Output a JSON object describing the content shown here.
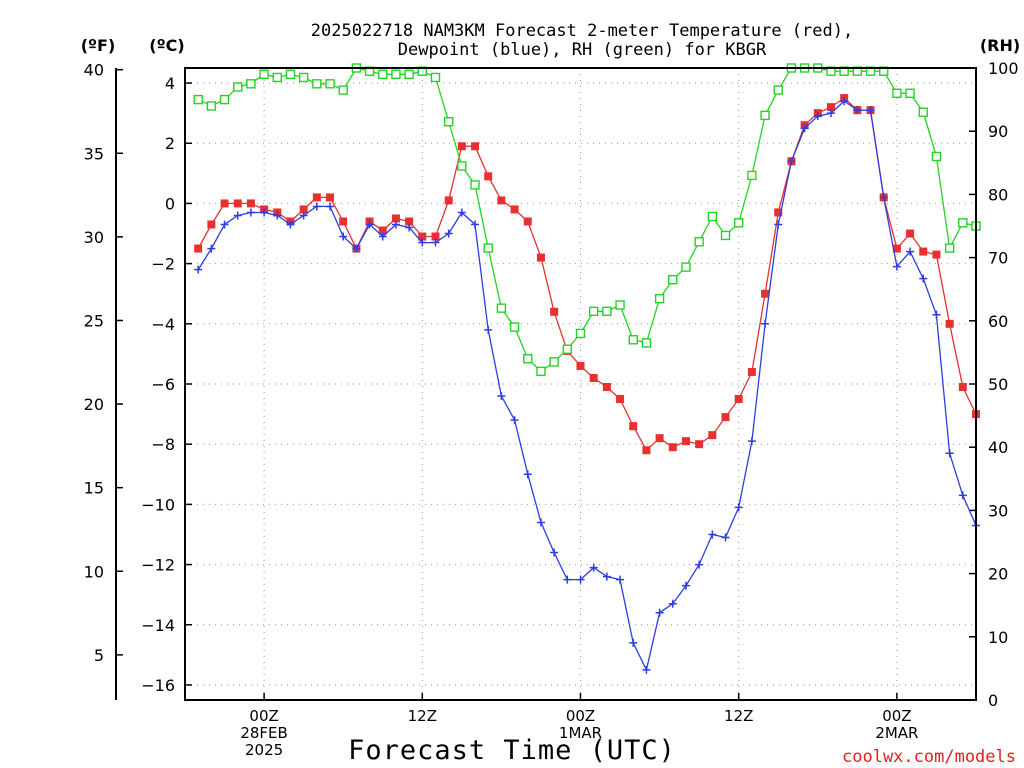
{
  "chart_data": {
    "type": "line",
    "title": "2025022718 NAM3KM Forecast 2-meter Temperature (red),",
    "subtitle": "Dewpoint (blue), RH (green) for KBGR",
    "xlabel": "Forecast Time (UTC)",
    "credit": "coolwx.com/models",
    "units": {
      "fahrenheit": "(ºF)",
      "celsius": "(ºC)",
      "rh": "(RH)"
    },
    "x": [
      19,
      20,
      21,
      22,
      23,
      24,
      25,
      26,
      27,
      28,
      29,
      30,
      31,
      32,
      33,
      34,
      35,
      36,
      37,
      38,
      39,
      40,
      41,
      42,
      43,
      44,
      45,
      46,
      47,
      48,
      49,
      50,
      51,
      52,
      53,
      54,
      55,
      56,
      57,
      58,
      59,
      60,
      61,
      62,
      63,
      64,
      65,
      66,
      67,
      68,
      69,
      70,
      71,
      72,
      73,
      74,
      75,
      76,
      77,
      78
    ],
    "x_range_hours": [
      18,
      78
    ],
    "x_ticks": [
      {
        "hour": 24,
        "lines": [
          "00Z",
          "28FEB",
          "2025"
        ]
      },
      {
        "hour": 36,
        "lines": [
          "12Z"
        ]
      },
      {
        "hour": 48,
        "lines": [
          "00Z",
          "1MAR"
        ]
      },
      {
        "hour": 60,
        "lines": [
          "12Z"
        ]
      },
      {
        "hour": 72,
        "lines": [
          "00Z",
          "2MAR"
        ]
      }
    ],
    "celsius_axis": {
      "ylim": [
        -16.5,
        4.5
      ],
      "ticks": [
        "4",
        "2",
        "0",
        "−2",
        "−4",
        "−6",
        "−8",
        "−10",
        "−12",
        "−14",
        "−16"
      ],
      "values": [
        4,
        2,
        0,
        -2,
        -4,
        -6,
        -8,
        -10,
        -12,
        -14,
        -16
      ]
    },
    "fahrenheit_axis": {
      "ticks": [
        "40",
        "35",
        "30",
        "25",
        "20",
        "15",
        "10",
        "5"
      ],
      "values": [
        40,
        35,
        30,
        25,
        20,
        15,
        10,
        5
      ]
    },
    "rh_axis": {
      "ylim": [
        0,
        100
      ],
      "ticks": [
        "100",
        "90",
        "80",
        "70",
        "60",
        "50",
        "40",
        "30",
        "20",
        "10",
        "0"
      ],
      "values": [
        100,
        90,
        80,
        70,
        60,
        50,
        40,
        30,
        20,
        10,
        0
      ]
    },
    "series": [
      {
        "name": "Temperature",
        "units": "C",
        "color": "#e83030",
        "marker": "filled-square",
        "values": [
          -1.5,
          -0.7,
          0,
          0,
          0,
          -0.2,
          -0.3,
          -0.6,
          -0.2,
          0.2,
          0.2,
          -0.6,
          -1.5,
          -0.6,
          -0.9,
          -0.5,
          -0.6,
          -1.1,
          -1.1,
          0.1,
          1.9,
          1.9,
          0.9,
          0.1,
          -0.2,
          -0.6,
          -1.8,
          -3.6,
          -4.9,
          -5.4,
          -5.8,
          -6.1,
          -6.5,
          -7.4,
          -8.2,
          -7.8,
          -8.1,
          -7.9,
          -8,
          -7.7,
          -7.1,
          -6.5,
          -5.6,
          -3.0,
          -0.3,
          1.4,
          2.6,
          3.0,
          3.2,
          3.5,
          3.1,
          3.1,
          0.2,
          -1.5,
          -1.0,
          -1.6,
          -1.7,
          -4.0,
          -6.1,
          -7.0
        ]
      },
      {
        "name": "Dewpoint",
        "units": "C",
        "color": "#2b3ee0",
        "marker": "plus",
        "values": [
          -2.2,
          -1.5,
          -0.7,
          -0.4,
          -0.3,
          -0.3,
          -0.4,
          -0.7,
          -0.4,
          -0.1,
          -0.1,
          -1.1,
          -1.5,
          -0.7,
          -1.1,
          -0.7,
          -0.8,
          -1.3,
          -1.3,
          -1.0,
          -0.3,
          -0.7,
          -4.2,
          -6.4,
          -7.2,
          -9.0,
          -10.6,
          -11.6,
          -12.5,
          -12.5,
          -12.1,
          -12.4,
          -12.5,
          -14.6,
          -15.5,
          -13.6,
          -13.3,
          -12.7,
          -12.0,
          -11.0,
          -11.1,
          -10.1,
          -7.9,
          -4.0,
          -0.7,
          1.4,
          2.5,
          2.9,
          3.0,
          3.4,
          3.1,
          3.1,
          0.2,
          -2.1,
          -1.6,
          -2.5,
          -3.7,
          -8.3,
          -9.7,
          -10.7
        ]
      },
      {
        "name": "RH",
        "units": "%",
        "color": "#22d422",
        "marker": "open-square",
        "values": [
          95,
          94,
          95,
          97,
          97.5,
          99,
          98.5,
          99,
          98.5,
          97.5,
          97.5,
          96.5,
          100,
          99.5,
          99,
          99,
          99,
          99.5,
          98.5,
          91.5,
          84.5,
          81.5,
          71.5,
          62,
          59,
          54,
          52,
          53.5,
          55.5,
          58,
          61.5,
          61.5,
          62.5,
          57,
          56.5,
          63.5,
          66.5,
          68.5,
          72.5,
          76.5,
          73.5,
          75.5,
          83,
          92.5,
          96.5,
          100,
          100,
          100,
          99.5,
          99.5,
          99.5,
          99.5,
          99.5,
          96,
          96,
          93,
          86,
          71.5,
          75.5,
          75
        ]
      }
    ]
  }
}
